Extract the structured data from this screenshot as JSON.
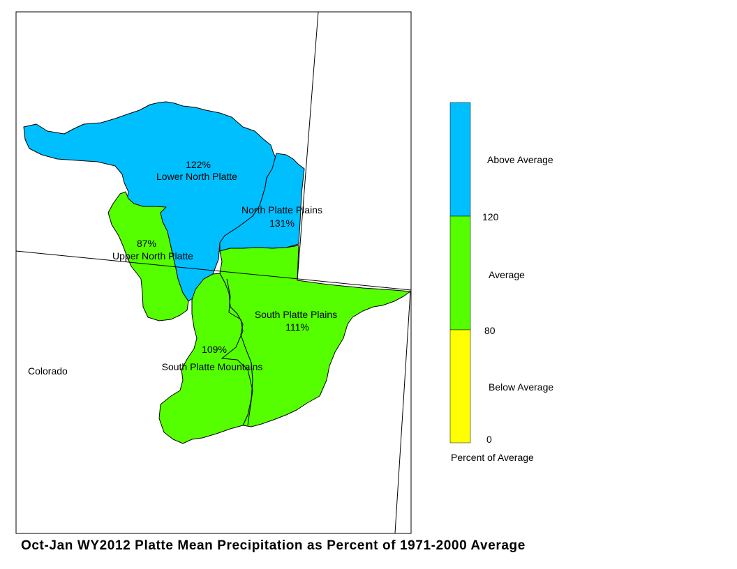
{
  "title": "Oct-Jan WY2012 Platte Mean Precipitation as Percent of 1971-2000 Average",
  "colors": {
    "above": "#00BFFF",
    "average": "#55FF00",
    "below": "#FFFF00"
  },
  "state_label": "Colorado",
  "regions": {
    "lower_north_platte": {
      "name": "Lower North Platte",
      "percent": "122%",
      "category": "above"
    },
    "north_platte_plains": {
      "name": "North Platte Plains",
      "percent": "131%",
      "category": "above"
    },
    "upper_north_platte": {
      "name": "Upper North Platte",
      "percent": "87%",
      "category": "average"
    },
    "south_platte_plains": {
      "name": "South Platte Plains",
      "percent": "111%",
      "category": "average"
    },
    "south_platte_mountains": {
      "name": "South Platte Mountains",
      "percent": "109%",
      "category": "average"
    }
  },
  "legend": {
    "above_label": "Above Average",
    "average_label": "Average",
    "below_label": "Below Average",
    "tick_120": "120",
    "tick_80": "80",
    "tick_0": "0",
    "caption": "Percent of Average"
  }
}
